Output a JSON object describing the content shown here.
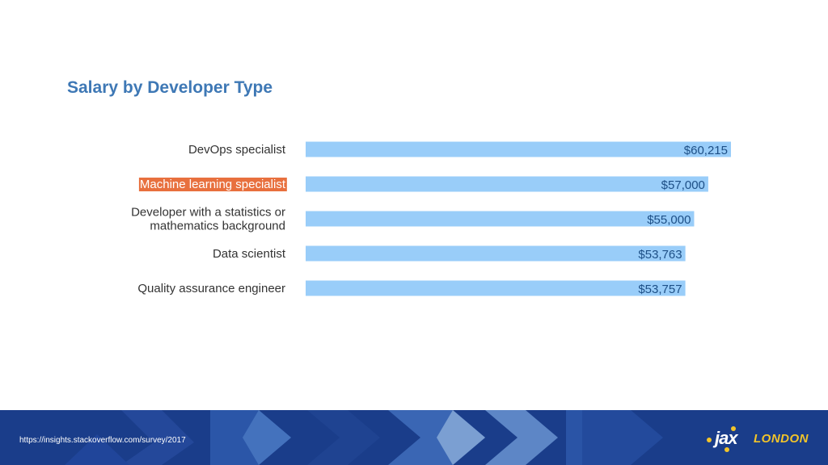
{
  "chart_data": {
    "type": "bar",
    "orientation": "horizontal",
    "title": "Salary by Developer Type",
    "categories": [
      [
        "DevOps specialist"
      ],
      [
        "Machine learning specialist"
      ],
      [
        "Developer with a statistics or",
        "mathematics background"
      ],
      [
        "Data scientist"
      ],
      [
        "Quality assurance engineer"
      ]
    ],
    "values": [
      60215,
      57000,
      55000,
      53763,
      53757
    ],
    "value_labels": [
      "$60,215",
      "$57,000",
      "$55,000",
      "$53,763",
      "$53,757"
    ],
    "highlighted_category_index": 1,
    "xlim": [
      0,
      60215
    ],
    "grid": false,
    "legend": "none",
    "colors": {
      "bar": "#99cdf9",
      "highlight_bg": "#e8703e",
      "highlight_text": "#ffffff",
      "title": "#3e78b5"
    }
  },
  "footer": {
    "source": "https://insights.stackoverflow.com/survey/2017",
    "logo_jax": "jax",
    "logo_london": "LONDON",
    "background": "#1a3d8a"
  }
}
